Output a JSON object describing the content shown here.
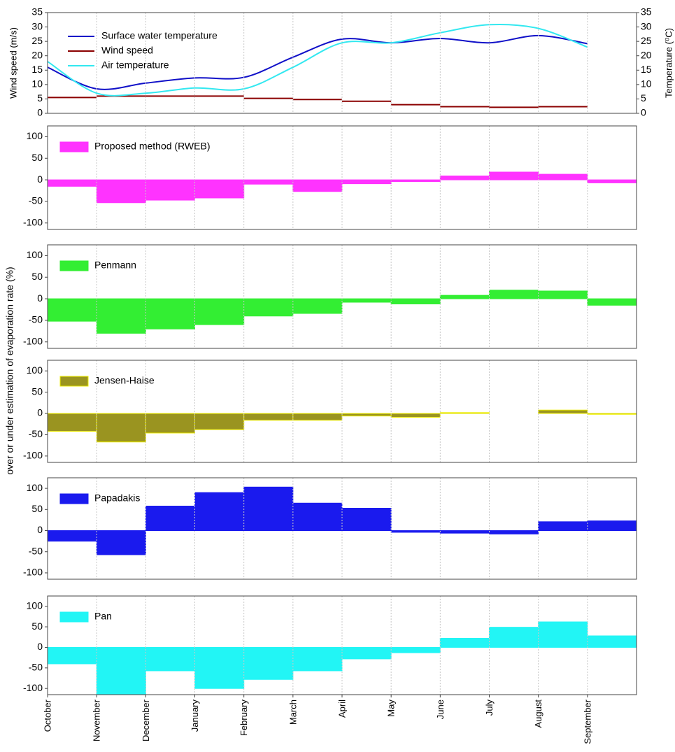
{
  "chart_data": [
    {
      "type": "line",
      "categories": [
        "October",
        "November",
        "December",
        "January",
        "February",
        "March",
        "April",
        "May",
        "June",
        "July",
        "August",
        "September"
      ],
      "ylabel": "Wind speed (m/s)",
      "y2label": "Temperature (⁰C)",
      "ylim": [
        0,
        35
      ],
      "yticks": [
        0,
        5,
        10,
        15,
        20,
        25,
        30,
        35
      ],
      "y2lim": [
        0,
        35
      ],
      "y2ticks": [
        0,
        5,
        10,
        15,
        20,
        25,
        30,
        35
      ],
      "grid": true,
      "series": [
        {
          "name": "Surface water temperature",
          "color": "#1010c8",
          "axis": "y2",
          "values": [
            16,
            8.5,
            10.5,
            12.3,
            12.5,
            19.5,
            25.8,
            24.5,
            26,
            24.5,
            27,
            24.2
          ]
        },
        {
          "name": "Wind speed",
          "color": "#8b0000",
          "step": true,
          "values": [
            5.5,
            6,
            6,
            6,
            5.2,
            4.8,
            4.2,
            3,
            2.3,
            2.1,
            2.3,
            2.4
          ]
        },
        {
          "name": "Air temperature",
          "color": "#33e8f0",
          "axis": "y2",
          "values": [
            18,
            7,
            7,
            8.8,
            8.5,
            16,
            24.5,
            24.5,
            28,
            30.8,
            29.5,
            23
          ]
        }
      ]
    },
    {
      "type": "bar",
      "ylim": [
        -115,
        125
      ],
      "yticks": [
        -100,
        -50,
        0,
        50,
        100
      ],
      "grid": true,
      "series": [
        {
          "name": "Proposed method (RWEB)",
          "color": "#ff33ff",
          "values": [
            -15,
            -53,
            -47,
            -42,
            -10,
            -27,
            -9,
            -4,
            9,
            18,
            13,
            -7
          ]
        }
      ]
    },
    {
      "type": "bar",
      "ylim": [
        -115,
        125
      ],
      "yticks": [
        -100,
        -50,
        0,
        50,
        100
      ],
      "grid": true,
      "series": [
        {
          "name": "Penmann",
          "color": "#33ee33",
          "values": [
            -52,
            -80,
            -70,
            -60,
            -40,
            -34,
            -8,
            -12,
            8,
            20,
            18,
            -15
          ]
        }
      ]
    },
    {
      "type": "bar",
      "ylim": [
        -115,
        125
      ],
      "yticks": [
        -100,
        -50,
        0,
        50,
        100
      ],
      "grid": true,
      "series": [
        {
          "name": "Jensen-Haise",
          "color": "#9a9420",
          "edgecolor": "#eeee00",
          "values": [
            -42,
            -67,
            -46,
            -38,
            -16,
            -16,
            -6,
            -9,
            2,
            0,
            8,
            -2
          ]
        }
      ]
    },
    {
      "type": "bar",
      "ylim": [
        -115,
        125
      ],
      "yticks": [
        -100,
        -50,
        0,
        50,
        100
      ],
      "grid": true,
      "series": [
        {
          "name": "Papadakis",
          "color": "#1a1aee",
          "values": [
            -25,
            -57,
            58,
            90,
            103,
            65,
            53,
            -4,
            -6,
            -8,
            21,
            23
          ]
        }
      ]
    },
    {
      "type": "bar",
      "ylim": [
        -115,
        125
      ],
      "yticks": [
        -100,
        -50,
        0,
        50,
        100
      ],
      "grid": true,
      "series": [
        {
          "name": "Pan",
          "color": "#22f5f5",
          "values": [
            -40,
            -120,
            -57,
            -100,
            -78,
            -57,
            -28,
            -13,
            22,
            49,
            62,
            28
          ]
        }
      ]
    }
  ],
  "shared_ylabel": "over or under estimation of evaporation rate (%)"
}
